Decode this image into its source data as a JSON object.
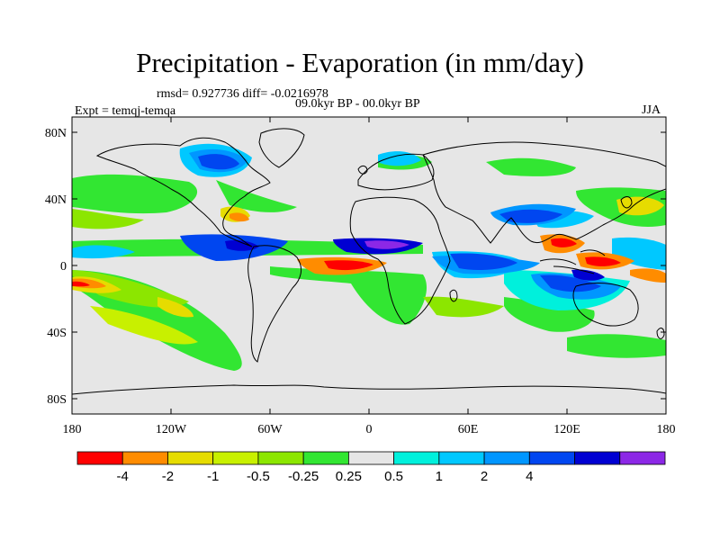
{
  "title": "Precipitation - Evaporation (in mm/day)",
  "stats_line": "rmsd= 0.927736 diff= -0.0216978",
  "period_line": "09.0kyr BP - 00.0kyr BP",
  "experiment_line": "Expt = temqj-temqa",
  "season": "JJA",
  "colors": {
    "background_field": "#e6e6e6",
    "coast": "#000000"
  },
  "axes": {
    "y_labels": [
      "80N",
      "40N",
      "0",
      "40S",
      "80S"
    ],
    "x_labels": [
      "180",
      "120W",
      "60W",
      "0",
      "60E",
      "120E",
      "180"
    ]
  },
  "colorbar": {
    "colors": [
      "#ff0000",
      "#ff8c00",
      "#e6dc00",
      "#c8f000",
      "#8ce600",
      "#32e632",
      "#e6e6e6",
      "#00f0dc",
      "#00c8ff",
      "#0096ff",
      "#0046f0",
      "#0000d2",
      "#8c28e6"
    ],
    "labels": [
      "-4",
      "-2",
      "-1",
      "-0.5",
      "-0.25",
      "0.25",
      "0.5",
      "1",
      "2",
      "4"
    ]
  }
}
